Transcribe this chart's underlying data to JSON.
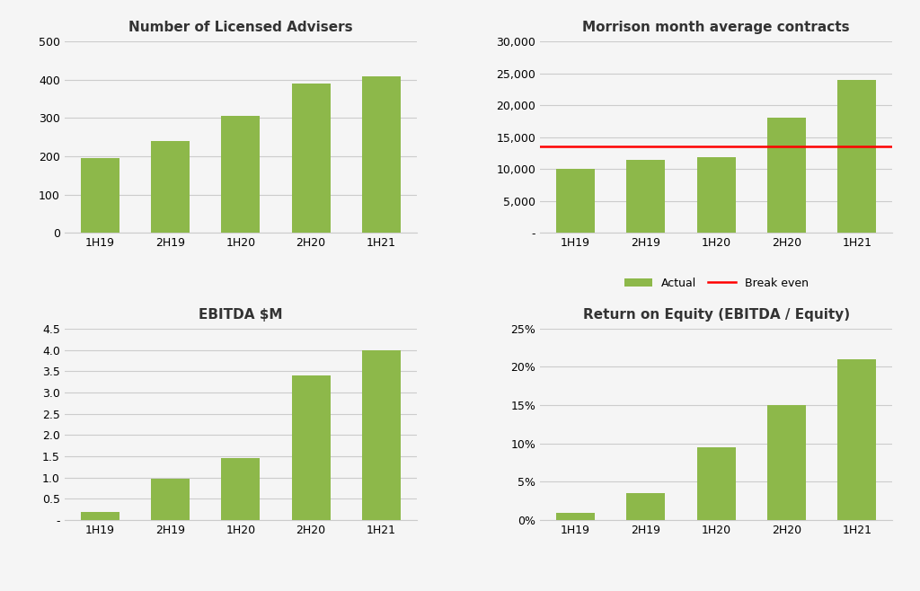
{
  "categories": [
    "1H19",
    "2H19",
    "1H20",
    "2H20",
    "1H21"
  ],
  "bar_color": "#8db84a",
  "background_color": "#f5f5f5",
  "advisers": {
    "title": "Number of Licensed Advisers",
    "values": [
      195,
      240,
      305,
      390,
      408
    ],
    "ylim": [
      0,
      500
    ],
    "yticks": [
      0,
      100,
      200,
      300,
      400,
      500
    ]
  },
  "morrison": {
    "title": "Morrison month average contracts",
    "values": [
      10000,
      11500,
      11800,
      18000,
      24000
    ],
    "break_even": 13500,
    "break_even_label": "Break even",
    "actual_label": "Actual",
    "ylim": [
      0,
      30000
    ],
    "yticks": [
      0,
      5000,
      10000,
      15000,
      20000,
      25000,
      30000
    ],
    "ytick_labels": [
      "-",
      "5,000",
      "10,000",
      "15,000",
      "20,000",
      "25,000",
      "30,000"
    ]
  },
  "ebitda": {
    "title": "EBITDA $M",
    "values": [
      0.2,
      0.97,
      1.45,
      3.4,
      4.0
    ],
    "ylim": [
      0,
      4.5
    ],
    "yticks": [
      0,
      0.5,
      1.0,
      1.5,
      2.0,
      2.5,
      3.0,
      3.5,
      4.0,
      4.5
    ],
    "ytick_labels": [
      "-",
      "0.5",
      "1.0",
      "1.5",
      "2.0",
      "2.5",
      "3.0",
      "3.5",
      "4.0",
      "4.5"
    ]
  },
  "roe": {
    "title": "Return on Equity (EBITDA / Equity)",
    "values": [
      0.01,
      0.035,
      0.095,
      0.15,
      0.21
    ],
    "ylim": [
      0,
      0.25
    ],
    "yticks": [
      0,
      0.05,
      0.1,
      0.15,
      0.2,
      0.25
    ],
    "ytick_labels": [
      "0%",
      "5%",
      "10%",
      "15%",
      "20%",
      "25%"
    ]
  },
  "title_fontsize": 11,
  "tick_fontsize": 9,
  "legend_fontsize": 9
}
